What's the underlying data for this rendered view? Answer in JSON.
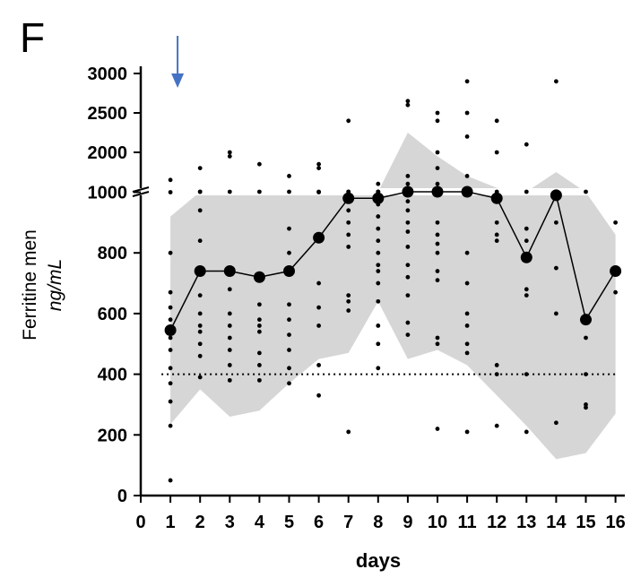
{
  "panel_label": "F",
  "colors": {
    "band": "#d6d6d6",
    "median": "#000000",
    "arrow": "#4472c4",
    "reference": "#000000"
  },
  "chart_data": {
    "type": "scatter",
    "title": "",
    "xlabel": "days",
    "ylabel_main": "Ferritine men",
    "ylabel_unit": "ng/mL",
    "x_ticks": [
      "0",
      "1",
      "2",
      "3",
      "4",
      "5",
      "6",
      "7",
      "8",
      "9",
      "10",
      "11",
      "12",
      "13",
      "14",
      "15",
      "16"
    ],
    "y_ticks": [
      "0",
      "200",
      "400",
      "600",
      "800",
      "1000",
      "2000",
      "2500",
      "3000"
    ],
    "xlim": [
      0,
      16
    ],
    "ylim": [
      0,
      3000
    ],
    "y_axis_break": [
      1000,
      1500
    ],
    "grid": false,
    "arrow_day": 1,
    "reference_line": 400,
    "series": [
      {
        "kind": "median-line",
        "x": [
          1,
          2,
          3,
          4,
          5,
          6,
          7,
          8,
          9,
          10,
          11,
          12,
          13,
          14,
          15,
          16
        ],
        "y": [
          545,
          740,
          740,
          720,
          740,
          850,
          980,
          980,
          1250,
          1150,
          1010,
          980,
          785,
          990,
          580,
          740
        ]
      },
      {
        "kind": "range-band",
        "x": [
          1,
          2,
          3,
          4,
          5,
          6,
          7,
          8,
          9,
          10,
          11,
          12,
          13,
          14,
          15,
          16
        ],
        "upper": [
          920,
          1100,
          1200,
          1150,
          1100,
          1250,
          1400,
          1300,
          2250,
          1950,
          1700,
          1550,
          1300,
          1750,
          1000,
          860
        ],
        "lower": [
          235,
          350,
          260,
          280,
          370,
          450,
          470,
          640,
          450,
          480,
          430,
          330,
          230,
          120,
          140,
          270
        ]
      },
      {
        "kind": "individual-points",
        "points": [
          [
            1,
            50
          ],
          [
            1,
            230
          ],
          [
            1,
            310
          ],
          [
            1,
            370
          ],
          [
            1,
            420
          ],
          [
            1,
            480
          ],
          [
            1,
            520
          ],
          [
            1,
            580
          ],
          [
            1,
            620
          ],
          [
            1,
            670
          ],
          [
            1,
            800
          ],
          [
            1,
            1000
          ],
          [
            1,
            1650
          ],
          [
            2,
            390
          ],
          [
            2,
            460
          ],
          [
            2,
            500
          ],
          [
            2,
            540
          ],
          [
            2,
            560
          ],
          [
            2,
            600
          ],
          [
            2,
            660
          ],
          [
            2,
            840
          ],
          [
            2,
            940
          ],
          [
            2,
            1200
          ],
          [
            2,
            1300
          ],
          [
            2,
            1800
          ],
          [
            3,
            380
          ],
          [
            3,
            430
          ],
          [
            3,
            480
          ],
          [
            3,
            520
          ],
          [
            3,
            560
          ],
          [
            3,
            600
          ],
          [
            3,
            680
          ],
          [
            3,
            750
          ],
          [
            3,
            1350
          ],
          [
            3,
            1950
          ],
          [
            3,
            2000
          ],
          [
            4,
            380
          ],
          [
            4,
            430
          ],
          [
            4,
            470
          ],
          [
            4,
            540
          ],
          [
            4,
            560
          ],
          [
            4,
            580
          ],
          [
            4,
            630
          ],
          [
            4,
            1500
          ],
          [
            4,
            1850
          ],
          [
            5,
            370
          ],
          [
            5,
            420
          ],
          [
            5,
            480
          ],
          [
            5,
            530
          ],
          [
            5,
            580
          ],
          [
            5,
            630
          ],
          [
            5,
            800
          ],
          [
            5,
            880
          ],
          [
            5,
            1400
          ],
          [
            5,
            1700
          ],
          [
            6,
            330
          ],
          [
            6,
            430
          ],
          [
            6,
            560
          ],
          [
            6,
            620
          ],
          [
            6,
            700
          ],
          [
            6,
            1000
          ],
          [
            6,
            1100
          ],
          [
            6,
            1800
          ],
          [
            6,
            1850
          ],
          [
            7,
            210
          ],
          [
            7,
            610
          ],
          [
            7,
            640
          ],
          [
            7,
            660
          ],
          [
            7,
            820
          ],
          [
            7,
            860
          ],
          [
            7,
            900
          ],
          [
            7,
            940
          ],
          [
            7,
            1050
          ],
          [
            7,
            1250
          ],
          [
            7,
            2400
          ],
          [
            8,
            420
          ],
          [
            8,
            500
          ],
          [
            8,
            560
          ],
          [
            8,
            640
          ],
          [
            8,
            700
          ],
          [
            8,
            740
          ],
          [
            8,
            760
          ],
          [
            8,
            800
          ],
          [
            8,
            840
          ],
          [
            8,
            880
          ],
          [
            8,
            920
          ],
          [
            8,
            960
          ],
          [
            8,
            1100
          ],
          [
            8,
            1200
          ],
          [
            8,
            1300
          ],
          [
            8,
            1600
          ],
          [
            9,
            530
          ],
          [
            9,
            570
          ],
          [
            9,
            660
          ],
          [
            9,
            720
          ],
          [
            9,
            760
          ],
          [
            9,
            820
          ],
          [
            9,
            870
          ],
          [
            9,
            900
          ],
          [
            9,
            940
          ],
          [
            9,
            970
          ],
          [
            9,
            1100
          ],
          [
            9,
            1300
          ],
          [
            9,
            1500
          ],
          [
            9,
            1600
          ],
          [
            9,
            1700
          ],
          [
            9,
            2600
          ],
          [
            9,
            2650
          ],
          [
            10,
            220
          ],
          [
            10,
            500
          ],
          [
            10,
            520
          ],
          [
            10,
            710
          ],
          [
            10,
            740
          ],
          [
            10,
            800
          ],
          [
            10,
            830
          ],
          [
            10,
            860
          ],
          [
            10,
            900
          ],
          [
            10,
            1100
          ],
          [
            10,
            1300
          ],
          [
            10,
            1600
          ],
          [
            10,
            1800
          ],
          [
            10,
            2000
          ],
          [
            10,
            2400
          ],
          [
            10,
            2500
          ],
          [
            11,
            210
          ],
          [
            11,
            470
          ],
          [
            11,
            500
          ],
          [
            11,
            560
          ],
          [
            11,
            600
          ],
          [
            11,
            700
          ],
          [
            11,
            800
          ],
          [
            11,
            1100
          ],
          [
            11,
            1300
          ],
          [
            11,
            1500
          ],
          [
            11,
            1700
          ],
          [
            11,
            2200
          ],
          [
            11,
            2500
          ],
          [
            11,
            2900
          ],
          [
            12,
            230
          ],
          [
            12,
            400
          ],
          [
            12,
            430
          ],
          [
            12,
            840
          ],
          [
            12,
            860
          ],
          [
            12,
            900
          ],
          [
            12,
            1200
          ],
          [
            12,
            2000
          ],
          [
            12,
            2400
          ],
          [
            13,
            210
          ],
          [
            13,
            400
          ],
          [
            13,
            660
          ],
          [
            13,
            680
          ],
          [
            13,
            840
          ],
          [
            13,
            880
          ],
          [
            13,
            1400
          ],
          [
            13,
            2100
          ],
          [
            14,
            240
          ],
          [
            14,
            600
          ],
          [
            14,
            750
          ],
          [
            14,
            900
          ],
          [
            14,
            2900
          ],
          [
            15,
            290
          ],
          [
            15,
            300
          ],
          [
            15,
            400
          ],
          [
            15,
            520
          ],
          [
            15,
            1400
          ],
          [
            16,
            670
          ],
          [
            16,
            900
          ]
        ]
      }
    ]
  }
}
